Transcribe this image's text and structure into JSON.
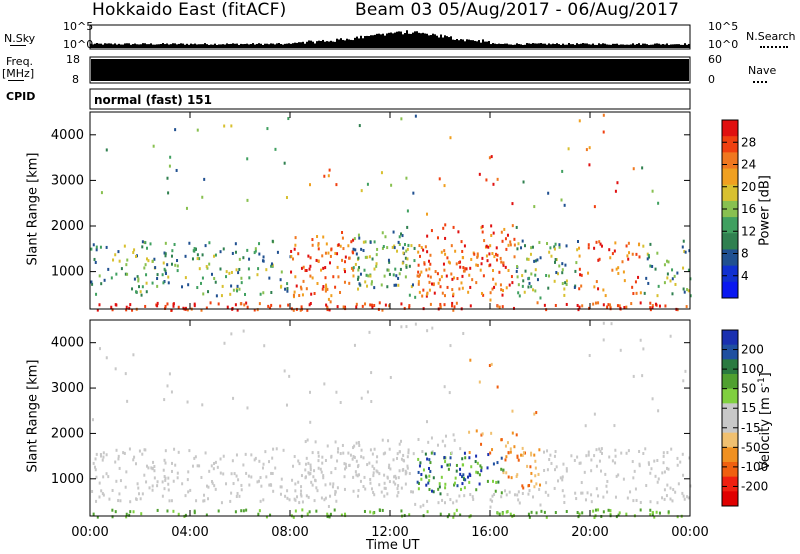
{
  "header": {
    "station": "Hokkaido East (fitACF)",
    "beam_range": "Beam 03 05/Aug/2017 - 06/Aug/2017"
  },
  "top_panels": {
    "nsky_label": "N.Sky",
    "nsearch_label": "N.Search",
    "nsky_ticks": [
      "10^5",
      "10^0"
    ],
    "nsky_right_ticks": [
      "10^5",
      "10^0"
    ],
    "freq_label": "Freq.",
    "freq_unit": "[MHz]",
    "freq_ticks": [
      "18",
      "8"
    ],
    "nave_label": "Nave",
    "nave_ticks": [
      "60",
      "0"
    ],
    "cpid_label": "CPID",
    "cpid_value": "normal (fast) 151"
  },
  "chart_data": [
    {
      "type": "heatmap",
      "name": "power",
      "xlabel": "",
      "ylabel": "Slant Range [km]",
      "x_ticks": [
        "00:00",
        "04:00",
        "08:00",
        "12:00",
        "16:00",
        "20:00",
        "00:00"
      ],
      "xlim_hours": [
        0,
        24
      ],
      "ylim_km": [
        180,
        4500
      ],
      "y_ticks": [
        "4000",
        "3000",
        "2000",
        "1000"
      ],
      "colorbar_label": "Power [dB]",
      "colorbar_ticks": [
        "28",
        "24",
        "20",
        "16",
        "12",
        "8",
        "4"
      ],
      "colorbar_colors": [
        "#e01010",
        "#f04010",
        "#f07820",
        "#f0a020",
        "#d8c030",
        "#88c050",
        "#40a060",
        "#308050",
        "#205090",
        "#1030d0",
        "#0a18f0"
      ]
    },
    {
      "type": "heatmap",
      "name": "velocity",
      "xlabel": "Time UT",
      "ylabel": "Slant Range [km]",
      "x_ticks": [
        "00:00",
        "04:00",
        "08:00",
        "12:00",
        "16:00",
        "20:00",
        "00:00"
      ],
      "xlim_hours": [
        0,
        24
      ],
      "ylim_km": [
        180,
        4500
      ],
      "y_ticks": [
        "4000",
        "3000",
        "2000",
        "1000"
      ],
      "colorbar_label": "Velocity [m s^-1]",
      "colorbar_ticks": [
        "200",
        "100",
        "50",
        "15",
        "-15",
        "-50",
        "-100",
        "-200"
      ],
      "colorbar_colors": [
        "#1a30b0",
        "#2050a0",
        "#2a7a40",
        "#50a030",
        "#80d040",
        "#c8c8c8",
        "#c8c8c8",
        "#f0c070",
        "#f09020",
        "#f06010",
        "#f02010",
        "#e00000"
      ]
    }
  ],
  "x_axis_title": "Time UT"
}
